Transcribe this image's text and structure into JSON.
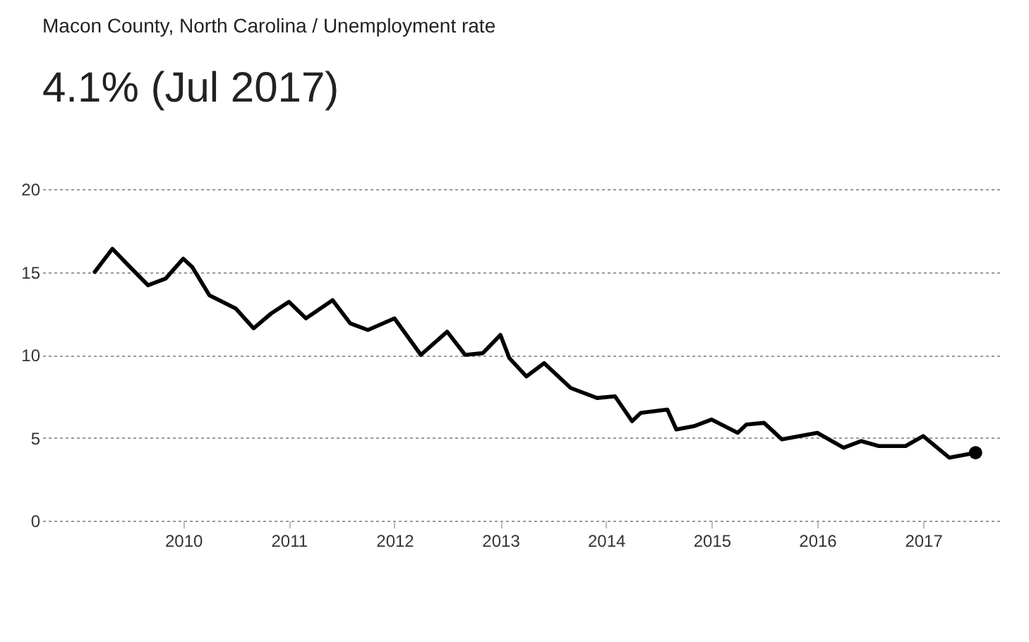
{
  "chart_data": {
    "type": "line",
    "title": "Macon County, North Carolina / Unemployment rate",
    "subtitle": "4.1% (Jul 2017)",
    "x": [
      "2009-03",
      "2009-05",
      "2009-07",
      "2009-09",
      "2009-11",
      "2010-01",
      "2010-02",
      "2010-04",
      "2010-07",
      "2010-09",
      "2010-11",
      "2011-01",
      "2011-03",
      "2011-06",
      "2011-08",
      "2011-10",
      "2012-01",
      "2012-04",
      "2012-07",
      "2012-09",
      "2012-11",
      "2013-01",
      "2013-02",
      "2013-04",
      "2013-06",
      "2013-09",
      "2013-12",
      "2014-02",
      "2014-04",
      "2014-05",
      "2014-08",
      "2014-09",
      "2014-11",
      "2015-01",
      "2015-04",
      "2015-05",
      "2015-07",
      "2015-09",
      "2016-01",
      "2016-04",
      "2016-06",
      "2016-08",
      "2016-11",
      "2017-01",
      "2017-04",
      "2017-07"
    ],
    "series": [
      {
        "color": "#000000",
        "values": [
          15.0,
          16.4,
          15.3,
          14.2,
          14.6,
          15.8,
          15.3,
          13.6,
          12.8,
          11.6,
          12.5,
          13.2,
          12.2,
          13.3,
          11.9,
          11.5,
          12.2,
          10.0,
          11.4,
          10.0,
          10.1,
          11.2,
          9.8,
          8.7,
          9.5,
          8.0,
          7.4,
          7.5,
          6.0,
          6.5,
          6.7,
          5.5,
          5.7,
          6.1,
          5.3,
          5.8,
          5.9,
          4.9,
          5.3,
          4.4,
          4.8,
          4.5,
          4.5,
          5.1,
          3.8,
          4.1
        ]
      }
    ],
    "xlim": [
      "2008-09",
      "2017-10"
    ],
    "xticks": [
      "2010",
      "2011",
      "2012",
      "2013",
      "2014",
      "2015",
      "2016",
      "2017"
    ],
    "ylim": [
      0,
      20
    ],
    "yticks": [
      0,
      5,
      10,
      15,
      20
    ],
    "grid": "y",
    "legend": false,
    "marker": "none",
    "line_style": "solid"
  }
}
